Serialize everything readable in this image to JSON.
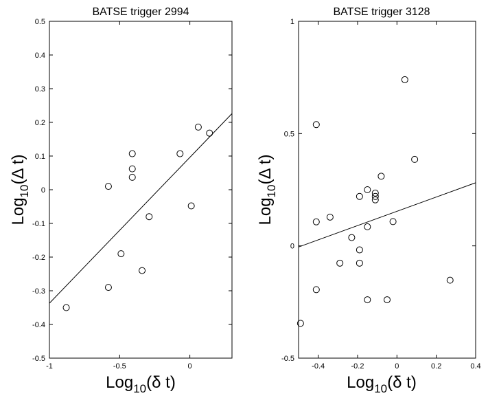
{
  "chart_data": [
    {
      "type": "scatter",
      "title": "BATSE trigger 2994",
      "xlabel": {
        "base": "Log",
        "sub": "10",
        "arg": "(δ t)"
      },
      "ylabel": {
        "base": "Log",
        "sub": "10",
        "arg": "(Δ t)"
      },
      "xlim": [
        -1,
        0.3
      ],
      "ylim": [
        -0.5,
        0.5
      ],
      "xticks": [
        -1,
        -0.5,
        0
      ],
      "xtick_labels": [
        "-1",
        "-0.5",
        "0"
      ],
      "yticks": [
        -0.5,
        -0.4,
        -0.3,
        -0.2,
        -0.1,
        0,
        0.1,
        0.2,
        0.3,
        0.4,
        0.5
      ],
      "ytick_labels": [
        "-0.5",
        "-0.4",
        "-0.3",
        "-0.2",
        "-0.1",
        "0",
        "0.1",
        "0.2",
        "0.3",
        "0.4",
        "0.5"
      ],
      "grid": false,
      "points": {
        "x": [
          -0.88,
          -0.58,
          -0.58,
          -0.49,
          -0.41,
          -0.41,
          -0.41,
          -0.34,
          -0.29,
          -0.07,
          0.01,
          0.06,
          0.14
        ],
        "y": [
          -0.35,
          -0.29,
          0.01,
          -0.19,
          0.107,
          0.062,
          0.037,
          -0.24,
          -0.08,
          0.107,
          -0.048,
          0.186,
          0.168
        ]
      },
      "fit_line": {
        "x": [
          -1,
          0.3
        ],
        "y": [
          -0.337,
          0.226
        ]
      }
    },
    {
      "type": "scatter",
      "title": "BATSE trigger 3128",
      "xlabel": {
        "base": "Log",
        "sub": "10",
        "arg": "(δ t)"
      },
      "ylabel": {
        "base": "Log",
        "sub": "10",
        "arg": "(Δ t)"
      },
      "xlim": [
        -0.5,
        0.4
      ],
      "ylim": [
        -0.5,
        1
      ],
      "xticks": [
        -0.4,
        -0.2,
        0,
        0.2,
        0.4
      ],
      "xtick_labels": [
        "-0.4",
        "-0.2",
        "0",
        "0.2",
        "0.4"
      ],
      "yticks": [
        -0.5,
        0,
        0.5,
        1
      ],
      "ytick_labels": [
        "-0.5",
        "0",
        "0.5",
        "1"
      ],
      "grid": false,
      "points": {
        "x": [
          -0.49,
          -0.41,
          -0.41,
          -0.41,
          -0.34,
          -0.29,
          -0.23,
          -0.19,
          -0.19,
          -0.19,
          -0.15,
          -0.15,
          -0.15,
          -0.11,
          -0.11,
          -0.11,
          -0.08,
          -0.05,
          -0.02,
          0.04,
          0.09,
          0.27
        ],
        "y": [
          -0.345,
          -0.195,
          0.54,
          0.107,
          0.128,
          -0.077,
          0.037,
          -0.077,
          -0.018,
          0.22,
          0.25,
          0.085,
          -0.24,
          0.235,
          0.22,
          0.205,
          0.31,
          -0.24,
          0.108,
          0.74,
          0.385,
          -0.153
        ]
      },
      "fit_line": {
        "x": [
          -0.5,
          0.4
        ],
        "y": [
          -0.005,
          0.281
        ]
      }
    }
  ]
}
